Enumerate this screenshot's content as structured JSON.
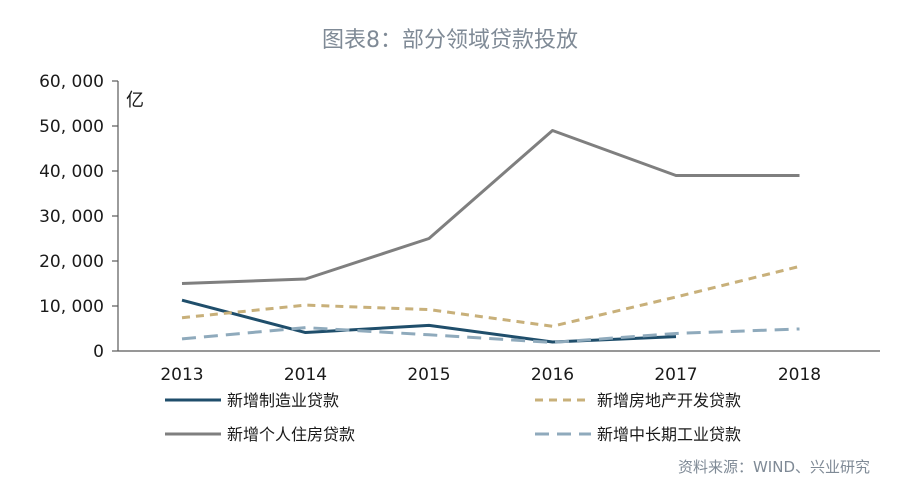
{
  "chart_data": {
    "type": "line",
    "title": "图表8：部分领域贷款投放",
    "ylabel": "亿",
    "xlabel": "",
    "ylim": [
      0,
      60000
    ],
    "y_ticks": [
      "0",
      "10, 000",
      "20, 000",
      "30, 000",
      "40, 000",
      "50, 000",
      "60, 000"
    ],
    "categories": [
      "2013",
      "2014",
      "2015",
      "2016",
      "2017",
      "2018"
    ],
    "series": [
      {
        "name": "新增制造业贷款",
        "values": [
          11300,
          4100,
          5700,
          2000,
          3200,
          null
        ],
        "color": "#1f4e6b",
        "dash": "solid"
      },
      {
        "name": "新增房地产开发贷款",
        "values": [
          7400,
          10200,
          9200,
          5500,
          12000,
          18800
        ],
        "color": "#c8b07a",
        "dash": "dashed"
      },
      {
        "name": "新增个人住房贷款",
        "values": [
          15000,
          16000,
          25000,
          49000,
          39000,
          39000
        ],
        "color": "#7f7f7f",
        "dash": "solid"
      },
      {
        "name": "新增中长期工业贷款",
        "values": [
          2700,
          5200,
          3600,
          1900,
          3900,
          4900
        ],
        "color": "#8faabc",
        "dash": "dashed"
      }
    ],
    "legend": "bottom",
    "source": "资料来源：WIND、兴业研究"
  }
}
